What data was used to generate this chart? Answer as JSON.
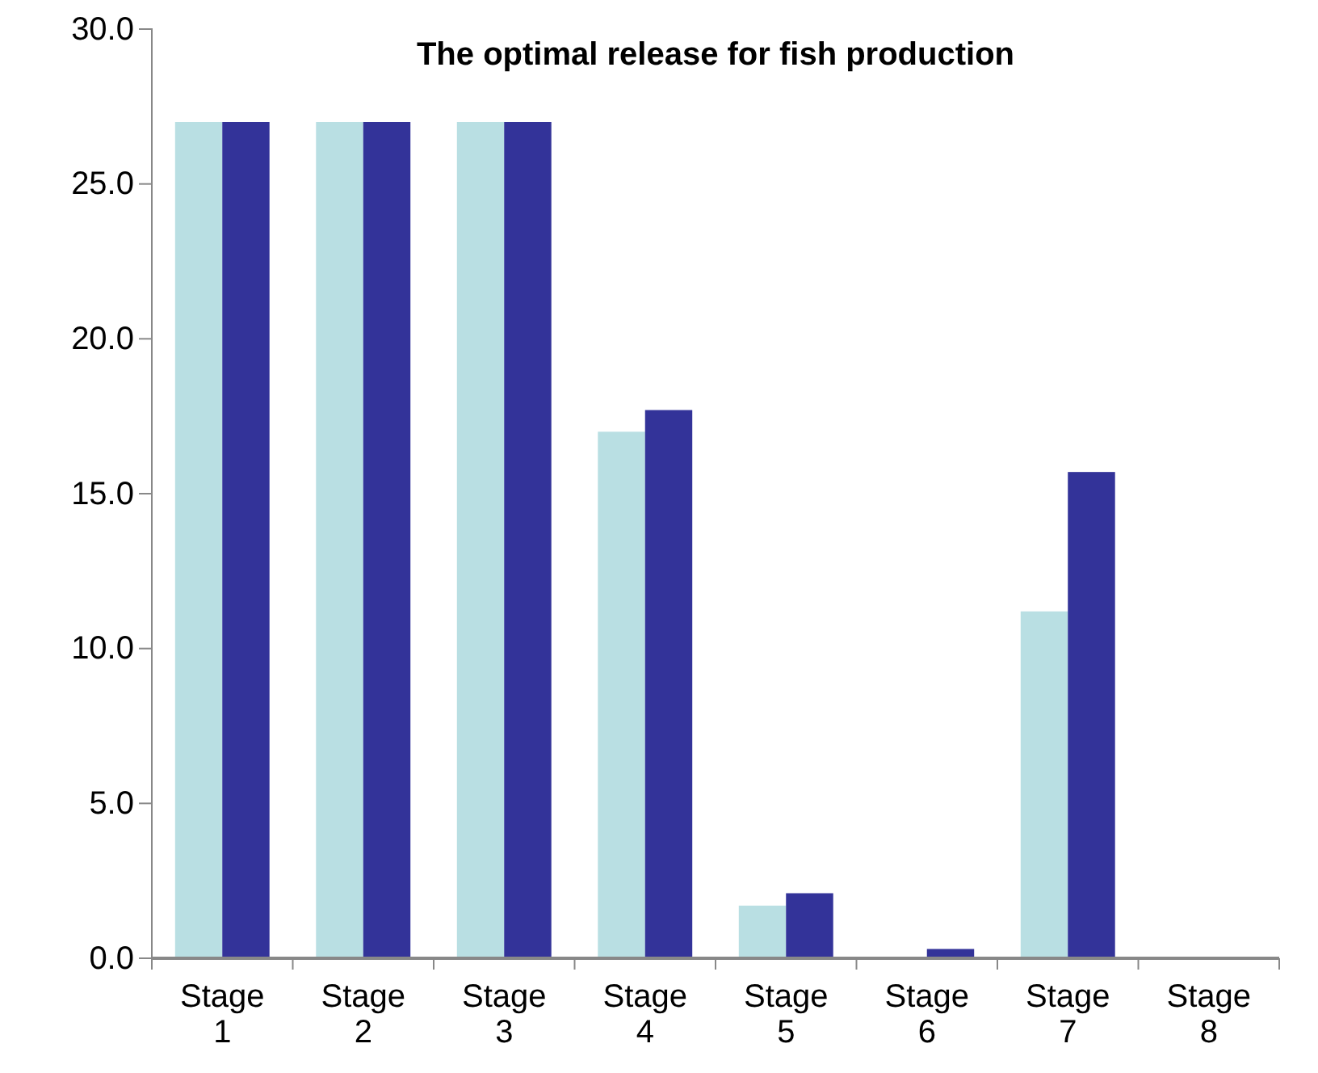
{
  "chart_data": {
    "type": "bar",
    "title": "The optimal release for fish production",
    "categories": [
      "Stage 1",
      "Stage 2",
      "Stage 3",
      "Stage 4",
      "Stage 5",
      "Stage 6",
      "Stage 7",
      "Stage 8"
    ],
    "series": [
      {
        "color": "#b9dfe3",
        "values": [
          27.0,
          27.0,
          27.0,
          17.0,
          1.7,
          0,
          11.2,
          0
        ]
      },
      {
        "color": "#333399",
        "values": [
          27.0,
          27.0,
          27.0,
          17.7,
          2.1,
          0.3,
          15.7,
          0
        ]
      }
    ],
    "ylim": [
      0,
      30
    ],
    "yticks": [
      {
        "value": 0,
        "label": "0.0"
      },
      {
        "value": 5,
        "label": "5.0"
      },
      {
        "value": 10,
        "label": "10.0"
      },
      {
        "value": 15,
        "label": "15.0"
      },
      {
        "value": 20,
        "label": "20.0"
      },
      {
        "value": 25,
        "label": "25.0"
      },
      {
        "value": 30,
        "label": "30.0"
      }
    ],
    "grid": false
  }
}
